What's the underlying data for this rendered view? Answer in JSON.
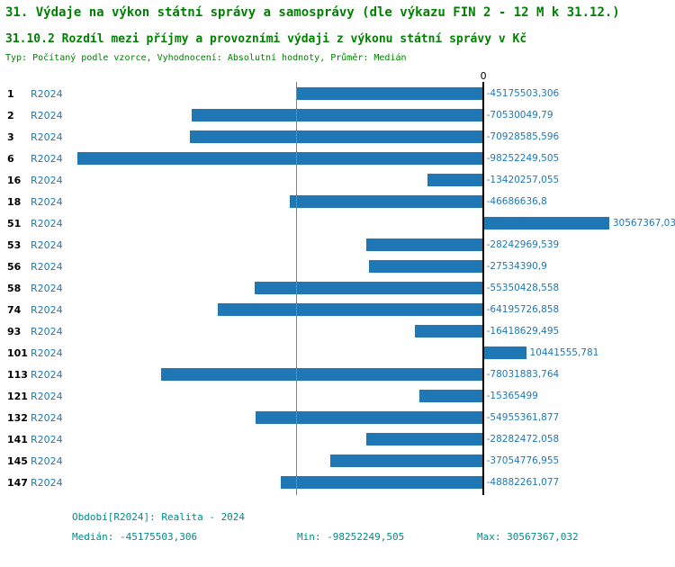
{
  "header": {
    "title": "31. Výdaje na výkon státní správy a samosprávy (dle výkazu FIN 2 - 12 M k 31.12.)",
    "subtitle": "31.10.2 Rozdíl mezi příjmy a provozními výdaji z výkonu státní správy v Kč",
    "meta": "Typ: Počítaný podle vzorce, Vyhodnocení: Absolutní hodnoty, Průměr: Medián"
  },
  "chart_data": {
    "type": "bar",
    "orientation": "horizontal",
    "title": "31.10.2 Rozdíl mezi příjmy a provozními výdaji z výkonu státní správy v Kč",
    "zero_label": "0",
    "xlim": [
      -99500000,
      46500000
    ],
    "median_value": -45175503.306,
    "bar_color": "#1f77b4",
    "rows": [
      {
        "id": "1",
        "period": "R2024",
        "value": -45175503.306,
        "label": "-45175503,306"
      },
      {
        "id": "2",
        "period": "R2024",
        "value": -70530049.79,
        "label": "-70530049,79"
      },
      {
        "id": "3",
        "period": "R2024",
        "value": -70928585.596,
        "label": "-70928585,596"
      },
      {
        "id": "6",
        "period": "R2024",
        "value": -98252249.505,
        "label": "-98252249,505"
      },
      {
        "id": "16",
        "period": "R2024",
        "value": -13420257.055,
        "label": "-13420257,055"
      },
      {
        "id": "18",
        "period": "R2024",
        "value": -46686636.8,
        "label": "-46686636,8"
      },
      {
        "id": "51",
        "period": "R2024",
        "value": 30567367.03,
        "label": "30567367,03"
      },
      {
        "id": "53",
        "period": "R2024",
        "value": -28242969.539,
        "label": "-28242969,539"
      },
      {
        "id": "56",
        "period": "R2024",
        "value": -27534390.9,
        "label": "-27534390,9"
      },
      {
        "id": "58",
        "period": "R2024",
        "value": -55350428.558,
        "label": "-55350428,558"
      },
      {
        "id": "74",
        "period": "R2024",
        "value": -64195726.858,
        "label": "-64195726,858"
      },
      {
        "id": "93",
        "period": "R2024",
        "value": -16418629.495,
        "label": "-16418629,495"
      },
      {
        "id": "101",
        "period": "R2024",
        "value": 10441555.781,
        "label": "10441555,781"
      },
      {
        "id": "113",
        "period": "R2024",
        "value": -78031883.764,
        "label": "-78031883,764"
      },
      {
        "id": "121",
        "period": "R2024",
        "value": -15365499,
        "label": "-15365499"
      },
      {
        "id": "132",
        "period": "R2024",
        "value": -54955361.877,
        "label": "-54955361,877"
      },
      {
        "id": "141",
        "period": "R2024",
        "value": -28282472.058,
        "label": "-28282472,058"
      },
      {
        "id": "145",
        "period": "R2024",
        "value": -37054776.955,
        "label": "-37054776,955"
      },
      {
        "id": "147",
        "period": "R2024",
        "value": -48882261.077,
        "label": "-48882261,077"
      }
    ]
  },
  "footer": {
    "period_line": "Období[R2024]: Realita - 2024",
    "median": "Medián: -45175503,306",
    "min": "Min: -98252249,505",
    "max": "Max: 30567367,032"
  },
  "colors": {
    "title_green": "#008000",
    "footer_teal": "#008b8b",
    "bar_blue": "#1f77b4",
    "axis_black": "#000000",
    "median_line": "#4f8fbf"
  }
}
